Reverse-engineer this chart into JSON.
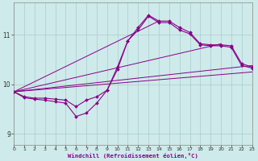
{
  "xlabel": "Windchill (Refroidissement éolien,°C)",
  "bg_color": "#ceeaea",
  "grid_color": "#aacccc",
  "line_color": "#880088",
  "xmin": 0,
  "xmax": 23,
  "ymin": 8.78,
  "ymax": 11.65,
  "yticks": [
    9,
    10,
    11
  ],
  "xticks": [
    0,
    1,
    2,
    3,
    4,
    5,
    6,
    7,
    8,
    9,
    10,
    11,
    12,
    13,
    14,
    15,
    16,
    17,
    18,
    19,
    20,
    21,
    22,
    23
  ],
  "curve1_x": [
    0,
    1,
    2,
    3,
    4,
    5,
    6,
    7,
    8,
    9,
    10,
    11,
    12,
    13,
    14,
    15,
    16,
    17,
    18,
    19,
    20,
    21,
    22,
    23
  ],
  "curve1_y": [
    9.85,
    9.75,
    9.72,
    9.72,
    9.7,
    9.68,
    9.55,
    9.68,
    9.75,
    9.88,
    10.35,
    10.88,
    11.15,
    11.4,
    11.28,
    11.28,
    11.15,
    11.05,
    10.82,
    10.8,
    10.8,
    10.78,
    10.42,
    10.35
  ],
  "curve2_x": [
    0,
    1,
    2,
    3,
    4,
    5,
    6,
    7,
    8,
    9,
    10,
    11,
    12,
    13,
    14,
    15,
    16,
    17,
    18,
    19,
    20,
    21,
    22,
    23
  ],
  "curve2_y": [
    9.85,
    9.73,
    9.7,
    9.68,
    9.65,
    9.62,
    9.35,
    9.42,
    9.62,
    9.88,
    10.3,
    10.88,
    11.1,
    11.38,
    11.25,
    11.25,
    11.1,
    11.02,
    10.8,
    10.78,
    10.78,
    10.75,
    10.38,
    10.33
  ],
  "line1_x": [
    0,
    23
  ],
  "line1_y": [
    9.85,
    10.38
  ],
  "line2_x": [
    0,
    20
  ],
  "line2_y": [
    9.85,
    10.82
  ],
  "line3_x": [
    0,
    14
  ],
  "line3_y": [
    9.85,
    11.28
  ],
  "line4_x": [
    0,
    23
  ],
  "line4_y": [
    9.85,
    10.25
  ]
}
